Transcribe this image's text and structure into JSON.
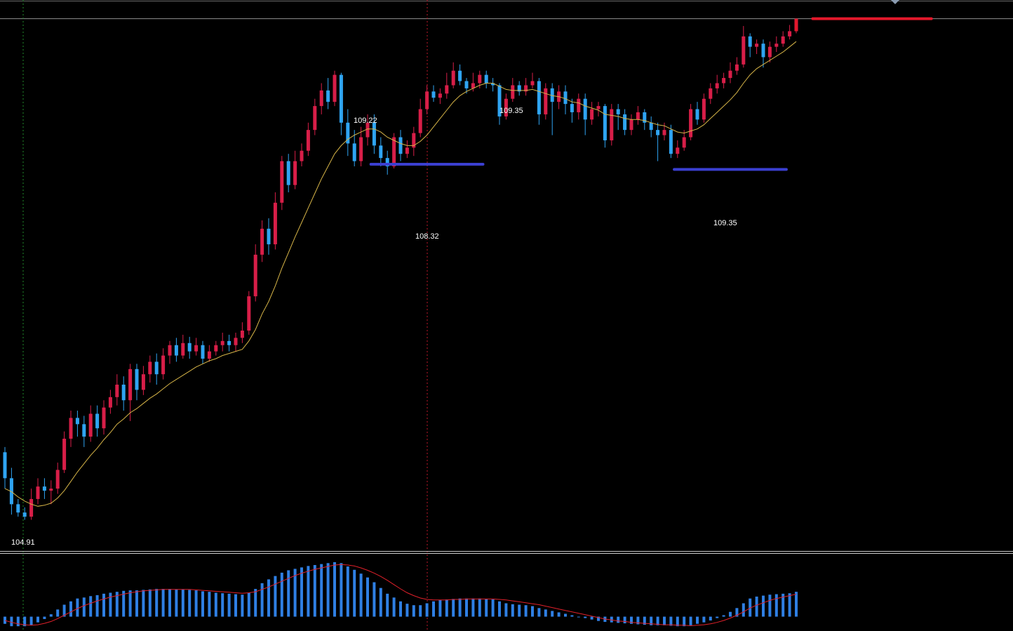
{
  "colors": {
    "background": "#000000",
    "bull_candle": "#d81e48",
    "bear_candle": "#2fa4f2",
    "moving_average": "#d7b548",
    "support_line": "#3b3fd0",
    "resistance_line": "#e3182b",
    "macd_bar": "#2f7fe3",
    "signal_line": "#e0202a",
    "price_line": "#8f8f8f",
    "cursor_line": "#c0182a",
    "time_marker": "#1f8a2a",
    "panel_separator": "#c8c8c8"
  },
  "chart_data": [
    {
      "type": "candlestick",
      "panel": "price",
      "ylim": [
        104.6,
        109.9
      ],
      "price_line": 109.72,
      "labels": {
        "peak_left": "109.22",
        "trough_left": "108.32",
        "peak_mid": "109.35",
        "trough_right": "109.35",
        "low_start": "104.91"
      },
      "levels": [
        {
          "kind": "support",
          "price": 108.32,
          "x_from": 70,
          "x_to": 102,
          "color": "support"
        },
        {
          "kind": "support",
          "price": 108.27,
          "x_from": 148,
          "x_to": 179,
          "color": "support"
        },
        {
          "kind": "resistance",
          "price": 109.72,
          "x_from": 180,
          "x_to": 213,
          "color": "resistance"
        }
      ],
      "candles": [
        [
          105.55,
          105.3,
          105.6,
          105.2
        ],
        [
          105.3,
          105.05,
          105.4,
          104.95
        ],
        [
          105.05,
          104.97,
          105.1,
          104.93
        ],
        [
          104.97,
          104.93,
          105.02,
          104.9
        ],
        [
          104.93,
          105.1,
          105.2,
          104.9
        ],
        [
          105.1,
          105.22,
          105.3,
          105.05
        ],
        [
          105.22,
          105.18,
          105.3,
          105.1
        ],
        [
          105.18,
          105.2,
          105.28,
          105.05
        ],
        [
          105.2,
          105.38,
          105.45,
          105.15
        ],
        [
          105.38,
          105.68,
          105.75,
          105.35
        ],
        [
          105.68,
          105.88,
          105.95,
          105.6
        ],
        [
          105.88,
          105.82,
          105.95,
          105.7
        ],
        [
          105.82,
          105.7,
          105.9,
          105.6
        ],
        [
          105.7,
          105.92,
          106.0,
          105.65
        ],
        [
          105.92,
          105.78,
          106.0,
          105.7
        ],
        [
          105.78,
          105.98,
          106.05,
          105.72
        ],
        [
          105.98,
          106.08,
          106.15,
          105.92
        ],
        [
          106.08,
          106.2,
          106.3,
          106.0
        ],
        [
          106.2,
          106.05,
          106.28,
          105.95
        ],
        [
          106.05,
          106.35,
          106.4,
          105.85
        ],
        [
          106.35,
          106.15,
          106.4,
          106.05
        ],
        [
          106.15,
          106.3,
          106.38,
          106.1
        ],
        [
          106.3,
          106.42,
          106.48,
          106.22
        ],
        [
          106.42,
          106.3,
          106.5,
          106.2
        ],
        [
          106.3,
          106.48,
          106.55,
          106.25
        ],
        [
          106.48,
          106.58,
          106.62,
          106.4
        ],
        [
          106.58,
          106.48,
          106.65,
          106.42
        ],
        [
          106.48,
          106.6,
          106.68,
          106.45
        ],
        [
          106.6,
          106.52,
          106.66,
          106.45
        ],
        [
          106.52,
          106.58,
          106.65,
          106.48
        ],
        [
          106.58,
          106.45,
          106.62,
          106.4
        ],
        [
          106.45,
          106.52,
          106.58,
          106.42
        ],
        [
          106.52,
          106.58,
          106.62,
          106.48
        ],
        [
          106.58,
          106.62,
          106.7,
          106.52
        ],
        [
          106.62,
          106.58,
          106.68,
          106.52
        ],
        [
          106.58,
          106.65,
          106.7,
          106.52
        ],
        [
          106.65,
          106.72,
          106.8,
          106.6
        ],
        [
          106.72,
          107.05,
          107.1,
          106.68
        ],
        [
          107.05,
          107.45,
          107.55,
          107.0
        ],
        [
          107.45,
          107.7,
          107.78,
          107.38
        ],
        [
          107.7,
          107.55,
          107.8,
          107.45
        ],
        [
          107.55,
          107.95,
          108.05,
          107.5
        ],
        [
          107.95,
          108.35,
          108.4,
          107.88
        ],
        [
          108.35,
          108.12,
          108.42,
          108.05
        ],
        [
          108.12,
          108.35,
          108.45,
          108.08
        ],
        [
          108.35,
          108.45,
          108.52,
          108.3
        ],
        [
          108.45,
          108.65,
          108.72,
          108.4
        ],
        [
          108.65,
          108.88,
          108.95,
          108.6
        ],
        [
          108.88,
          109.03,
          109.1,
          108.8
        ],
        [
          109.03,
          108.92,
          109.15,
          108.85
        ],
        [
          108.92,
          109.18,
          109.22,
          108.88
        ],
        [
          109.18,
          108.72,
          109.2,
          108.6
        ],
        [
          108.72,
          108.52,
          108.85,
          108.4
        ],
        [
          108.52,
          108.35,
          108.65,
          108.3
        ],
        [
          108.35,
          108.58,
          108.68,
          108.3
        ],
        [
          108.58,
          108.72,
          108.8,
          108.5
        ],
        [
          108.72,
          108.5,
          108.8,
          108.42
        ],
        [
          108.5,
          108.38,
          108.58,
          108.3
        ],
        [
          108.38,
          108.3,
          108.45,
          108.22
        ],
        [
          108.3,
          108.58,
          108.62,
          108.28
        ],
        [
          108.58,
          108.42,
          108.65,
          108.35
        ],
        [
          108.42,
          108.48,
          108.55,
          108.38
        ],
        [
          108.48,
          108.62,
          108.68,
          108.4
        ],
        [
          108.62,
          108.85,
          108.95,
          108.58
        ],
        [
          108.85,
          109.02,
          109.08,
          108.8
        ],
        [
          109.02,
          108.96,
          109.08,
          108.92
        ],
        [
          108.96,
          109.0,
          109.05,
          108.9
        ],
        [
          109.0,
          109.08,
          109.2,
          108.95
        ],
        [
          109.08,
          109.22,
          109.3,
          109.05
        ],
        [
          109.22,
          109.12,
          109.28,
          109.08
        ],
        [
          109.12,
          109.05,
          109.15,
          109.0
        ],
        [
          109.05,
          109.1,
          109.2,
          109.02
        ],
        [
          109.1,
          109.18,
          109.22,
          109.05
        ],
        [
          109.18,
          109.1,
          109.22,
          109.05
        ],
        [
          109.1,
          109.08,
          109.15,
          109.02
        ],
        [
          109.08,
          108.78,
          109.1,
          108.7
        ],
        [
          108.78,
          108.95,
          109.0,
          108.75
        ],
        [
          108.95,
          109.08,
          109.15,
          108.92
        ],
        [
          109.08,
          109.02,
          109.12,
          108.98
        ],
        [
          109.02,
          109.08,
          109.15,
          108.98
        ],
        [
          109.08,
          109.12,
          109.2,
          109.05
        ],
        [
          109.12,
          108.8,
          109.15,
          108.7
        ],
        [
          108.8,
          109.05,
          109.1,
          108.75
        ],
        [
          109.05,
          108.92,
          109.1,
          108.6
        ],
        [
          108.92,
          109.02,
          109.08,
          108.85
        ],
        [
          109.02,
          108.9,
          109.08,
          108.8
        ],
        [
          108.9,
          108.82,
          108.95,
          108.72
        ],
        [
          108.82,
          108.95,
          109.0,
          108.75
        ],
        [
          108.95,
          108.75,
          109.0,
          108.6
        ],
        [
          108.75,
          108.85,
          108.92,
          108.7
        ],
        [
          108.85,
          108.88,
          108.92,
          108.78
        ],
        [
          108.88,
          108.55,
          108.9,
          108.48
        ],
        [
          108.55,
          108.85,
          108.9,
          108.5
        ],
        [
          108.85,
          108.8,
          108.9,
          108.65
        ],
        [
          108.8,
          108.65,
          108.85,
          108.6
        ],
        [
          108.65,
          108.75,
          108.8,
          108.6
        ],
        [
          108.75,
          108.82,
          108.88,
          108.7
        ],
        [
          108.82,
          108.72,
          108.85,
          108.65
        ],
        [
          108.72,
          108.65,
          108.78,
          108.58
        ],
        [
          108.65,
          108.6,
          108.72,
          108.35
        ],
        [
          108.6,
          108.65,
          108.72,
          108.55
        ],
        [
          108.65,
          108.42,
          108.7,
          108.38
        ],
        [
          108.42,
          108.48,
          108.55,
          108.38
        ],
        [
          108.48,
          108.58,
          108.65,
          108.45
        ],
        [
          108.58,
          108.85,
          108.9,
          108.55
        ],
        [
          108.85,
          108.75,
          108.92,
          108.7
        ],
        [
          108.75,
          108.95,
          109.0,
          108.72
        ],
        [
          108.95,
          109.05,
          109.1,
          108.9
        ],
        [
          109.05,
          109.1,
          109.18,
          109.0
        ],
        [
          109.1,
          109.15,
          109.2,
          109.05
        ],
        [
          109.15,
          109.22,
          109.3,
          109.1
        ],
        [
          109.22,
          109.28,
          109.35,
          109.18
        ],
        [
          109.28,
          109.55,
          109.65,
          109.25
        ],
        [
          109.55,
          109.45,
          109.58,
          109.35
        ],
        [
          109.45,
          109.48,
          109.52,
          109.38
        ],
        [
          109.48,
          109.35,
          109.52,
          109.25
        ],
        [
          109.35,
          109.45,
          109.5,
          109.3
        ],
        [
          109.45,
          109.48,
          109.55,
          109.4
        ],
        [
          109.48,
          109.55,
          109.6,
          109.45
        ],
        [
          109.55,
          109.6,
          109.66,
          109.52
        ],
        [
          109.6,
          109.72,
          109.72,
          109.58
        ]
      ],
      "moving_average": [
        105.2,
        105.17,
        105.12,
        105.08,
        105.05,
        105.03,
        105.04,
        105.06,
        105.11,
        105.18,
        105.27,
        105.36,
        105.44,
        105.52,
        105.59,
        105.67,
        105.74,
        105.82,
        105.87,
        105.93,
        105.97,
        106.02,
        106.07,
        106.11,
        106.16,
        106.21,
        106.25,
        106.29,
        106.33,
        106.37,
        106.4,
        106.43,
        106.45,
        106.48,
        106.5,
        106.52,
        106.54,
        106.62,
        106.73,
        106.88,
        107.0,
        107.15,
        107.32,
        107.47,
        107.62,
        107.76,
        107.9,
        108.04,
        108.18,
        108.3,
        108.42,
        108.5,
        108.56,
        108.6,
        108.63,
        108.66,
        108.66,
        108.63,
        108.58,
        108.55,
        108.52,
        108.5,
        108.5,
        108.54,
        108.6,
        108.68,
        108.76,
        108.84,
        108.92,
        108.98,
        109.02,
        109.05,
        109.08,
        109.1,
        109.1,
        109.07,
        109.04,
        109.03,
        109.03,
        109.03,
        109.04,
        109.02,
        109.0,
        108.98,
        108.97,
        108.95,
        108.92,
        108.91,
        108.88,
        108.86,
        108.84,
        108.8,
        108.79,
        108.78,
        108.76,
        108.75,
        108.75,
        108.74,
        108.72,
        108.7,
        108.69,
        108.66,
        108.63,
        108.62,
        108.64,
        108.66,
        108.7,
        108.76,
        108.82,
        108.88,
        108.94,
        109.01,
        109.1,
        109.18,
        109.24,
        109.28,
        109.32,
        109.36,
        109.4,
        109.45,
        109.5
      ]
    },
    {
      "type": "histogram",
      "panel": "oscillator",
      "ylim": [
        -0.3,
        1.3
      ],
      "values": [
        -0.15,
        -0.2,
        -0.2,
        -0.2,
        -0.18,
        -0.12,
        -0.05,
        0.05,
        0.15,
        0.25,
        0.32,
        0.38,
        0.4,
        0.43,
        0.45,
        0.48,
        0.5,
        0.52,
        0.54,
        0.55,
        0.55,
        0.56,
        0.57,
        0.58,
        0.58,
        0.58,
        0.57,
        0.57,
        0.56,
        0.55,
        0.53,
        0.52,
        0.5,
        0.49,
        0.48,
        0.47,
        0.46,
        0.5,
        0.58,
        0.7,
        0.78,
        0.85,
        0.92,
        0.97,
        1.0,
        1.03,
        1.06,
        1.08,
        1.1,
        1.12,
        1.14,
        1.12,
        1.05,
        0.98,
        0.9,
        0.82,
        0.72,
        0.6,
        0.48,
        0.4,
        0.32,
        0.27,
        0.24,
        0.24,
        0.28,
        0.32,
        0.35,
        0.36,
        0.37,
        0.38,
        0.38,
        0.38,
        0.38,
        0.37,
        0.36,
        0.32,
        0.28,
        0.26,
        0.25,
        0.24,
        0.22,
        0.18,
        0.15,
        0.12,
        0.09,
        0.06,
        0.03,
        0.0,
        -0.03,
        -0.06,
        -0.09,
        -0.11,
        -0.12,
        -0.13,
        -0.14,
        -0.15,
        -0.16,
        -0.17,
        -0.18,
        -0.18,
        -0.18,
        -0.19,
        -0.2,
        -0.2,
        -0.18,
        -0.15,
        -0.12,
        -0.08,
        -0.03,
        0.03,
        0.1,
        0.18,
        0.28,
        0.38,
        0.42,
        0.44,
        0.46,
        0.47,
        0.48,
        0.49,
        0.52
      ],
      "signal": [
        -0.08,
        -0.12,
        -0.15,
        -0.17,
        -0.18,
        -0.17,
        -0.14,
        -0.1,
        -0.04,
        0.03,
        0.1,
        0.17,
        0.23,
        0.28,
        0.33,
        0.37,
        0.41,
        0.44,
        0.47,
        0.5,
        0.52,
        0.54,
        0.55,
        0.56,
        0.57,
        0.57,
        0.57,
        0.57,
        0.57,
        0.56,
        0.55,
        0.54,
        0.53,
        0.52,
        0.51,
        0.5,
        0.49,
        0.5,
        0.52,
        0.57,
        0.62,
        0.68,
        0.74,
        0.8,
        0.86,
        0.91,
        0.95,
        0.99,
        1.02,
        1.05,
        1.08,
        1.09,
        1.08,
        1.06,
        1.02,
        0.97,
        0.91,
        0.84,
        0.76,
        0.67,
        0.58,
        0.5,
        0.44,
        0.39,
        0.36,
        0.35,
        0.35,
        0.35,
        0.36,
        0.36,
        0.37,
        0.37,
        0.37,
        0.37,
        0.37,
        0.36,
        0.35,
        0.33,
        0.31,
        0.29,
        0.27,
        0.25,
        0.22,
        0.19,
        0.16,
        0.13,
        0.1,
        0.07,
        0.04,
        0.01,
        -0.02,
        -0.05,
        -0.07,
        -0.09,
        -0.1,
        -0.12,
        -0.13,
        -0.14,
        -0.15,
        -0.16,
        -0.17,
        -0.17,
        -0.18,
        -0.18,
        -0.19,
        -0.18,
        -0.17,
        -0.15,
        -0.12,
        -0.08,
        -0.03,
        0.03,
        0.1,
        0.18,
        0.24,
        0.29,
        0.34,
        0.38,
        0.41,
        0.44,
        0.47
      ]
    }
  ]
}
